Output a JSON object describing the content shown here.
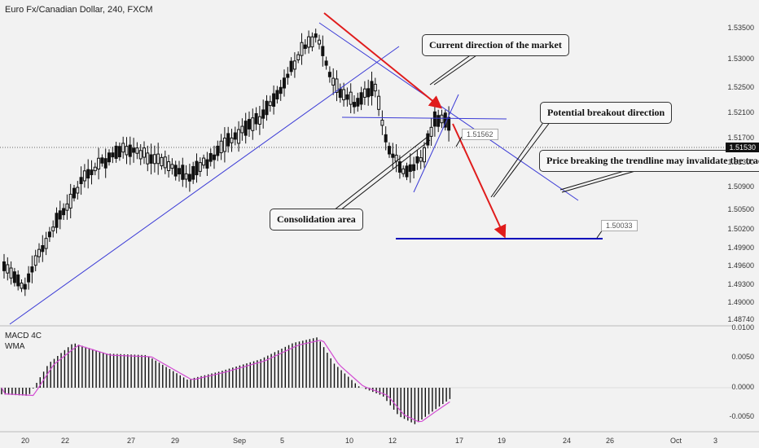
{
  "header": {
    "title": "Euro Fx/Canadian Dollar, 240, FXCM"
  },
  "indicator": {
    "name": "MACD 4C",
    "overlay": "WMA"
  },
  "annotations": {
    "current_direction": "Current direction of the market",
    "potential_breakout": "Potential breakout direction",
    "invalidate": "Price breaking the trendline may invalidate the trade",
    "consolidation": "Consolidation area",
    "price_tag_1": "1.51562",
    "price_tag_2": "1.50033",
    "last_price": "1.51530"
  },
  "colors": {
    "candle": "#111111",
    "trendline": "#3b3bd6",
    "arrow": "#e01c1c",
    "target": "#0000bb",
    "macd_signal": "#d24bd2"
  },
  "chart_data": {
    "type": "candlestick",
    "title": "Euro Fx/Canadian Dollar, 240, FXCM",
    "y_ticks": [
      "1.53500",
      "1.53000",
      "1.52500",
      "1.52100",
      "1.51700",
      "1.51300",
      "1.50900",
      "1.50500",
      "1.50200",
      "1.49900",
      "1.49600",
      "1.49300",
      "1.49000",
      "1.48740"
    ],
    "x_ticks": [
      "20",
      "22",
      "27",
      "29",
      "Sep",
      "5",
      "10",
      "12",
      "17",
      "19",
      "24",
      "26",
      "Oct",
      "3"
    ],
    "price_range": [
      1.4874,
      1.5375
    ],
    "target_level": 1.50033,
    "resistance_level": 1.5205,
    "macd_ticks": [
      "0.0100",
      "0.0050",
      "0.0000",
      "-0.0050"
    ],
    "macd_range": [
      -0.006,
      0.01
    ]
  }
}
